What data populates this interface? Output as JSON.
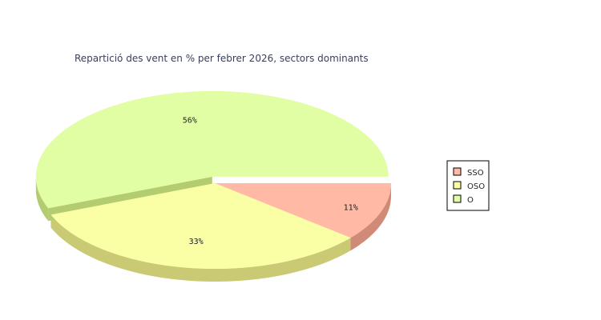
{
  "chart_data": {
    "type": "pie",
    "title": "Repartició des vent en % per febrer 2026, sectors dominants",
    "categories": [
      "SSO",
      "OSO",
      "O"
    ],
    "values": [
      11,
      33,
      56
    ],
    "value_labels": [
      "11%",
      "33%",
      "56%"
    ],
    "colors": [
      "#ffb9a4",
      "#fafea4",
      "#e1fea4"
    ],
    "side_colors": [
      "#d08b78",
      "#caca74",
      "#b4cc70"
    ],
    "exploded": [
      "O"
    ],
    "three_d": true,
    "legend": "right"
  }
}
